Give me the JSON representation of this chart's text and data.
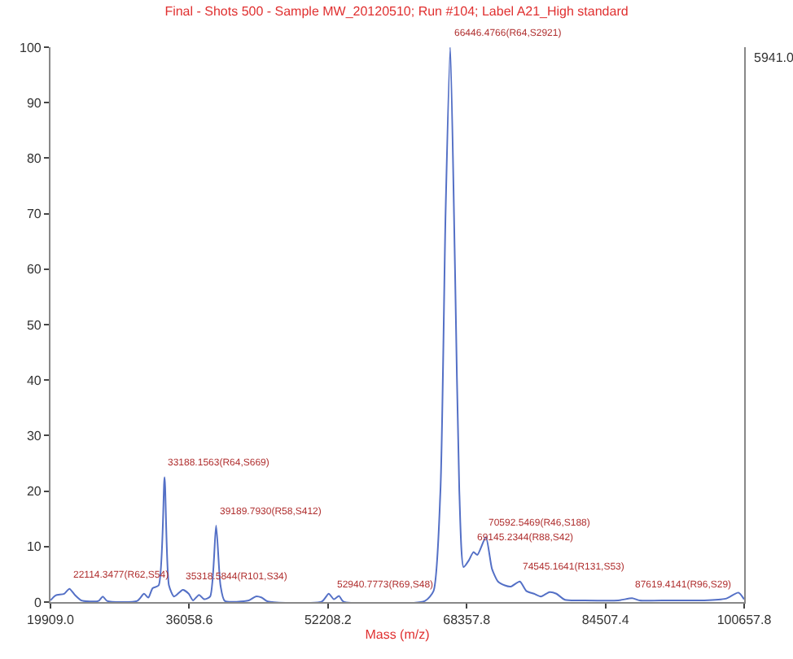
{
  "chart_data": {
    "type": "line",
    "title": "Final - Shots 500 - Sample MW_20120510; Run #104; Label A21_High standard",
    "xlabel": "Mass (m/z)",
    "x": [
      19909,
      20500,
      21500,
      22114,
      22800,
      23500,
      25500,
      26000,
      26500,
      30000,
      30800,
      31300,
      31800,
      32500,
      33188,
      33700,
      34300,
      35318,
      36000,
      36500,
      37200,
      37800,
      38500,
      39189,
      39700,
      40200,
      43000,
      43800,
      44500,
      45200,
      51500,
      52300,
      52900,
      53500,
      54000,
      63500,
      64500,
      65300,
      65900,
      66446,
      67000,
      67500,
      68000,
      68600,
      69145,
      69600,
      70592,
      71300,
      72000,
      72800,
      73500,
      74545,
      75300,
      76200,
      77000,
      78000,
      78800,
      79800,
      82000,
      86000,
      87619,
      88500,
      92000,
      96000,
      98500,
      100000,
      100657
    ],
    "series": [
      {
        "color": "#5470c6",
        "values": [
          0.3,
          1.2,
          1.5,
          2.4,
          1.2,
          0.3,
          0.2,
          1.0,
          0.2,
          0.2,
          1.5,
          0.8,
          2.5,
          3,
          22.5,
          3,
          1,
          2.2,
          1.5,
          0.3,
          1.3,
          0.5,
          1,
          13.8,
          3,
          0.2,
          0.3,
          1.0,
          0.8,
          0.1,
          0.1,
          1.5,
          0.5,
          1.1,
          0.1,
          0.2,
          2,
          20,
          70,
          100,
          60,
          20,
          6.3,
          7.5,
          9,
          8.5,
          11.7,
          6,
          3.7,
          3,
          2.8,
          3.7,
          2,
          1.5,
          1,
          1.8,
          1.5,
          0.4,
          0.3,
          0.3,
          0.7,
          0.3,
          0.3,
          0.3,
          0.6,
          1.7,
          0.5
        ]
      }
    ],
    "xlim": [
      19909,
      100657.8
    ],
    "xticks": [
      {
        "value": 19909,
        "label": "19909.0"
      },
      {
        "value": 36058.6,
        "label": "36058.6"
      },
      {
        "value": 52208.2,
        "label": "52208.2"
      },
      {
        "value": 68357.8,
        "label": "68357.8"
      },
      {
        "value": 84507.4,
        "label": "84507.4"
      },
      {
        "value": 100657.8,
        "label": "100657.8"
      }
    ],
    "ylim": [
      0,
      100
    ],
    "yticks": [
      0,
      10,
      20,
      30,
      40,
      50,
      60,
      70,
      80,
      90,
      100
    ],
    "marker": "none",
    "line_style": "solid",
    "annotations": [
      {
        "text": "22114.3477(R62,S54)",
        "x": 22114,
        "y": 2.4
      },
      {
        "text": "33188.1563(R64,S669)",
        "x": 33188,
        "y": 22.5
      },
      {
        "text": "35318.5844(R101,S34)",
        "x": 35318,
        "y": 2.2
      },
      {
        "text": "39189.7930(R58,S412)",
        "x": 39189,
        "y": 13.8
      },
      {
        "text": "52940.7773(R69,S48)",
        "x": 52900,
        "y": 0.5
      },
      {
        "text": "66446.4766(R64,S2921)",
        "x": 66446,
        "y": 100
      },
      {
        "text": "69145.2344(R88,S42)",
        "x": 69145,
        "y": 9
      },
      {
        "text": "70592.5469(R46,S188)",
        "x": 70592,
        "y": 11.7
      },
      {
        "text": "74545.1641(R131,S53)",
        "x": 74545,
        "y": 3.7
      },
      {
        "text": "87619.4141(R96,S29)",
        "x": 87619,
        "y": 0.7
      },
      "5941.0"
    ]
  }
}
